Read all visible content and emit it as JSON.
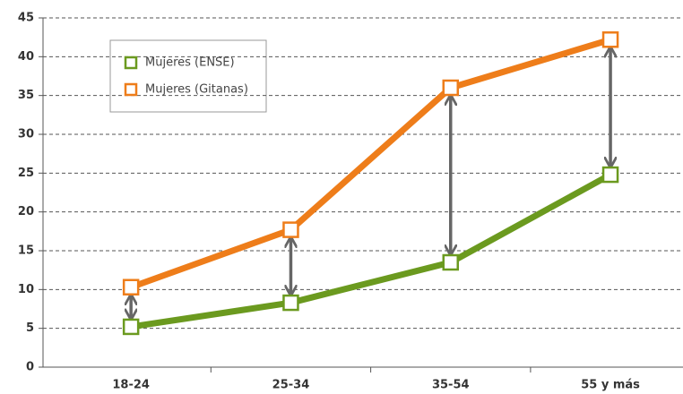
{
  "chart_data": {
    "type": "line",
    "categories": [
      "18-24",
      "25-34",
      "35-54",
      "55 y más"
    ],
    "series": [
      {
        "name": "Mujeres (ENSE)",
        "color": "#6b9a1f",
        "values": [
          5.2,
          8.3,
          13.5,
          24.8
        ]
      },
      {
        "name": "Mujeres (Gitanas)",
        "color": "#ee7d1a",
        "values": [
          10.3,
          17.7,
          36,
          42.2
        ]
      }
    ],
    "ylim": [
      0,
      45
    ],
    "yticks": [
      0,
      5,
      10,
      15,
      20,
      25,
      30,
      35,
      40,
      45
    ],
    "grid": true,
    "legend": "upper left"
  }
}
